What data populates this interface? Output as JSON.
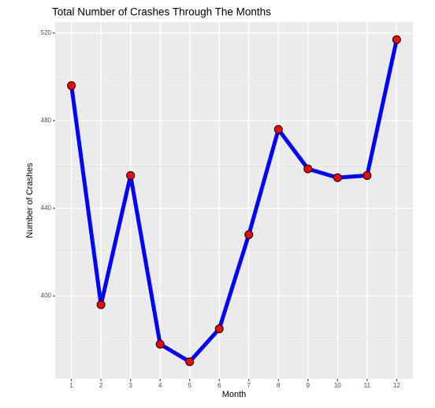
{
  "chart_data": {
    "type": "line",
    "title": "Total Number of Crashes Through The Months",
    "x_label": "Month",
    "y_label": "Number of Crashes",
    "x": [
      1,
      2,
      3,
      4,
      5,
      6,
      7,
      8,
      9,
      10,
      11,
      12
    ],
    "series": [
      {
        "name": "Crashes",
        "color": "#0000ff",
        "marker_color": "#ff0000",
        "values": [
          496,
          396,
          455,
          378,
          370,
          385,
          428,
          476,
          458,
          454,
          455,
          517
        ]
      }
    ],
    "xlim": [
      0.45,
      12.55
    ],
    "xticks": [
      1,
      2,
      3,
      4,
      5,
      6,
      7,
      8,
      9,
      10,
      11,
      12
    ],
    "ylim": [
      362.2,
      525
    ],
    "yticks": [
      400,
      440,
      480,
      520
    ],
    "grid": true
  }
}
